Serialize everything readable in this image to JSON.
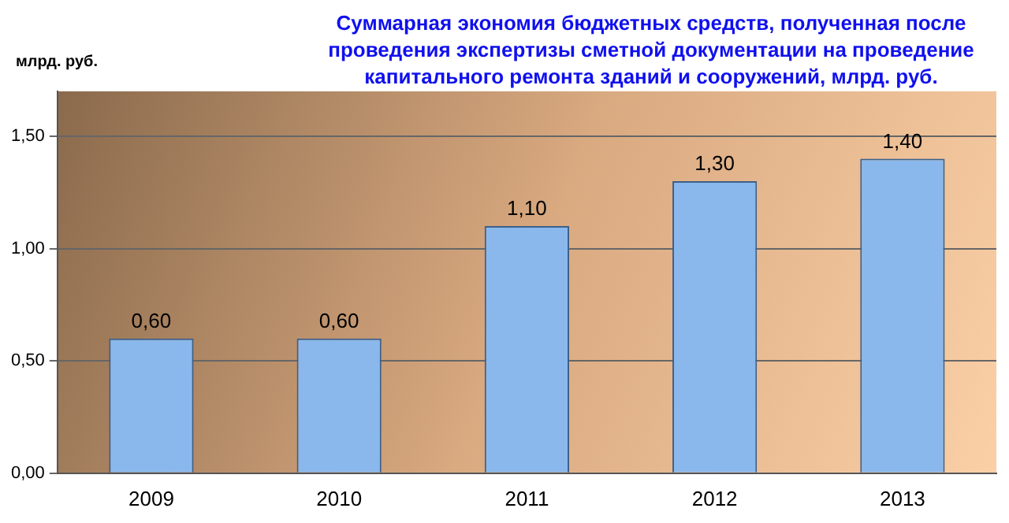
{
  "chart_data": {
    "type": "bar",
    "title": "Суммарная экономия бюджетных средств, полученная после проведения экспертизы сметной документации на проведение капитального ремонта зданий и сооружений, млрд. руб.",
    "ylabel": "млрд. руб.",
    "categories": [
      "2009",
      "2010",
      "2011",
      "2012",
      "2013"
    ],
    "values": [
      0.6,
      0.6,
      1.1,
      1.3,
      1.4
    ],
    "color": "#8ab8ec",
    "value_labels": [
      "0,60",
      "0,60",
      "1,10",
      "1,30",
      "1,40"
    ],
    "ylim": [
      0,
      1.7
    ],
    "yticks": [
      {
        "value": 0,
        "label": "0,00"
      },
      {
        "value": 0.5,
        "label": "0,50"
      },
      {
        "value": 1,
        "label": "1,00"
      },
      {
        "value": 1.5,
        "label": "1,50"
      }
    ],
    "grid": "y",
    "legend": false
  }
}
